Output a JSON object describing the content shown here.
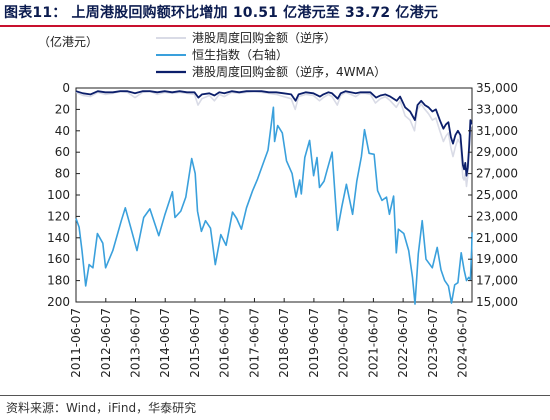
{
  "header": {
    "title": "图表11：  上周港股回购额环比增加 10.51 亿港元至 33.72 亿港元"
  },
  "footer": {
    "source": "资料来源：Wind，iFind，华泰研究"
  },
  "colors": {
    "buyback_weekly": "#d9dbe6",
    "hsi": "#3aa0dc",
    "buyback_4wma": "#0c1f6b",
    "title": "#0b1b4f",
    "title_rule": "#c8102e"
  },
  "chart_data": {
    "type": "line",
    "left_axis_unit": "（亿港元）",
    "left_axis": {
      "min": 0,
      "max": 200,
      "reversed": true,
      "ticks": [
        0,
        20,
        40,
        60,
        80,
        100,
        120,
        140,
        160,
        180,
        200
      ]
    },
    "right_axis": {
      "min": 15000,
      "max": 35000,
      "ticks": [
        15000,
        17000,
        19000,
        21000,
        23000,
        25000,
        27000,
        29000,
        31000,
        33000,
        35000
      ]
    },
    "x_tick_labels": [
      "2011-06-07",
      "2012-06-07",
      "2013-06-07",
      "2014-06-07",
      "2015-06-07",
      "2016-06-07",
      "2017-06-07",
      "2018-06-07",
      "2019-06-07",
      "2020-06-07",
      "2021-06-07",
      "2022-06-07",
      "2023-06-07",
      "2024-06-07"
    ],
    "x_range": [
      "2011-06-07",
      "2024-09-30"
    ],
    "grid": false,
    "legend_position": "top-center",
    "series": [
      {
        "name": "港股周度回购金额（逆序）",
        "axis": "left",
        "color": "#d9dbe6",
        "x": [
          "2011-06-07",
          "2011-09-01",
          "2011-12-01",
          "2012-03-01",
          "2012-06-01",
          "2012-09-01",
          "2012-12-01",
          "2013-03-01",
          "2013-06-01",
          "2013-09-01",
          "2013-12-01",
          "2014-03-01",
          "2014-06-01",
          "2014-09-01",
          "2014-12-01",
          "2015-03-01",
          "2015-06-01",
          "2015-07-15",
          "2015-09-01",
          "2015-12-01",
          "2016-02-01",
          "2016-04-01",
          "2016-06-01",
          "2016-09-01",
          "2016-12-01",
          "2017-03-01",
          "2017-06-01",
          "2017-09-01",
          "2017-12-01",
          "2018-03-01",
          "2018-06-01",
          "2018-09-01",
          "2018-10-20",
          "2018-12-01",
          "2019-03-01",
          "2019-06-01",
          "2019-08-15",
          "2019-10-01",
          "2019-12-01",
          "2020-01-15",
          "2020-03-20",
          "2020-05-01",
          "2020-07-01",
          "2020-09-01",
          "2020-11-01",
          "2021-01-01",
          "2021-03-01",
          "2021-05-01",
          "2021-07-01",
          "2021-09-01",
          "2021-11-01",
          "2022-01-01",
          "2022-03-15",
          "2022-05-01",
          "2022-07-01",
          "2022-09-01",
          "2022-10-25",
          "2022-12-01",
          "2023-01-15",
          "2023-03-01",
          "2023-04-15",
          "2023-06-01",
          "2023-07-15",
          "2023-09-01",
          "2023-10-15",
          "2023-11-15",
          "2023-12-15",
          "2024-01-15",
          "2024-02-10",
          "2024-03-10",
          "2024-04-10",
          "2024-05-10",
          "2024-06-10",
          "2024-06-25",
          "2024-07-10",
          "2024-07-25",
          "2024-08-10",
          "2024-08-25",
          "2024-09-10",
          "2024-09-25"
        ],
        "values": [
          4,
          7,
          8,
          4,
          6,
          5,
          3,
          4,
          9,
          4,
          3,
          6,
          4,
          5,
          4,
          5,
          6,
          16,
          10,
          7,
          12,
          6,
          8,
          4,
          5,
          4,
          3,
          4,
          5,
          6,
          8,
          10,
          20,
          8,
          6,
          7,
          12,
          9,
          6,
          8,
          16,
          7,
          4,
          6,
          8,
          5,
          5,
          6,
          14,
          10,
          8,
          12,
          18,
          12,
          26,
          30,
          40,
          20,
          15,
          20,
          24,
          30,
          28,
          40,
          50,
          45,
          42,
          56,
          64,
          55,
          48,
          52,
          84,
          86,
          80,
          92,
          82,
          62,
          38,
          34
        ]
      },
      {
        "name": "恒生指数（右轴）",
        "axis": "right",
        "color": "#3aa0dc",
        "x": [
          "2011-06-07",
          "2011-07-15",
          "2011-08-20",
          "2011-10-04",
          "2011-11-15",
          "2012-01-01",
          "2012-02-25",
          "2012-05-01",
          "2012-06-05",
          "2012-09-01",
          "2012-12-15",
          "2013-02-01",
          "2013-04-15",
          "2013-06-25",
          "2013-09-15",
          "2013-12-01",
          "2014-03-20",
          "2014-06-01",
          "2014-09-03",
          "2014-10-05",
          "2014-12-15",
          "2015-02-15",
          "2015-04-28",
          "2015-06-10",
          "2015-07-08",
          "2015-08-25",
          "2015-10-15",
          "2015-12-15",
          "2016-02-12",
          "2016-04-20",
          "2016-06-24",
          "2016-09-10",
          "2016-11-01",
          "2016-12-28",
          "2017-03-01",
          "2017-05-15",
          "2017-07-15",
          "2017-09-15",
          "2017-11-20",
          "2018-01-26",
          "2018-02-09",
          "2018-03-20",
          "2018-05-15",
          "2018-07-05",
          "2018-09-12",
          "2018-10-30",
          "2018-12-15",
          "2019-01-03",
          "2019-02-15",
          "2019-04-15",
          "2019-06-03",
          "2019-07-15",
          "2019-08-15",
          "2019-10-10",
          "2019-11-15",
          "2020-01-17",
          "2020-03-23",
          "2020-05-15",
          "2020-07-10",
          "2020-09-25",
          "2020-11-15",
          "2021-01-10",
          "2021-02-17",
          "2021-04-15",
          "2021-06-15",
          "2021-07-28",
          "2021-09-20",
          "2021-11-15",
          "2021-12-20",
          "2022-02-10",
          "2022-03-15",
          "2022-04-10",
          "2022-06-15",
          "2022-08-15",
          "2022-09-30",
          "2022-10-31",
          "2022-12-10",
          "2023-01-27",
          "2023-03-15",
          "2023-05-31",
          "2023-07-31",
          "2023-09-15",
          "2023-10-31",
          "2023-12-15",
          "2024-01-22",
          "2024-03-01",
          "2024-04-10",
          "2024-05-20",
          "2024-06-25",
          "2024-07-25",
          "2024-08-20",
          "2024-09-10",
          "2024-09-26",
          "2024-09-30"
        ],
        "values": [
          22800,
          22000,
          19800,
          16500,
          18500,
          18200,
          21400,
          20500,
          18200,
          19800,
          22600,
          23800,
          21800,
          19800,
          22900,
          23700,
          21200,
          23100,
          25300,
          22900,
          23500,
          24800,
          28400,
          27000,
          23500,
          21600,
          22600,
          21900,
          18500,
          21300,
          20300,
          23400,
          22800,
          21800,
          23800,
          25400,
          26500,
          27800,
          29200,
          33200,
          30000,
          31500,
          30800,
          28200,
          27000,
          24800,
          26400,
          25100,
          28500,
          30100,
          26800,
          28500,
          25700,
          26300,
          27300,
          29000,
          21700,
          23900,
          26000,
          23200,
          26300,
          28600,
          31100,
          28900,
          28800,
          25400,
          24500,
          24800,
          23200,
          24900,
          19600,
          21800,
          21400,
          19800,
          17300,
          14800,
          19500,
          22600,
          19000,
          18200,
          20100,
          18000,
          17000,
          16500,
          14900,
          16600,
          16800,
          19600,
          18000,
          17000,
          17300,
          17100,
          20000,
          21500
        ]
      },
      {
        "name": "港股周度回购金额（逆序，4WMA）",
        "axis": "left",
        "color": "#0c1f6b",
        "x": [
          "2011-06-07",
          "2011-09-01",
          "2011-12-01",
          "2012-03-01",
          "2012-06-01",
          "2012-09-01",
          "2012-12-01",
          "2013-03-01",
          "2013-06-01",
          "2013-09-01",
          "2013-12-01",
          "2014-03-01",
          "2014-06-01",
          "2014-09-01",
          "2014-12-01",
          "2015-03-01",
          "2015-06-01",
          "2015-07-20",
          "2015-09-01",
          "2015-12-01",
          "2016-02-01",
          "2016-04-01",
          "2016-06-01",
          "2016-09-01",
          "2016-12-01",
          "2017-03-01",
          "2017-06-01",
          "2017-09-01",
          "2017-12-01",
          "2018-03-01",
          "2018-06-01",
          "2018-09-01",
          "2018-10-25",
          "2018-12-01",
          "2019-03-01",
          "2019-06-01",
          "2019-08-20",
          "2019-10-01",
          "2019-12-01",
          "2020-01-15",
          "2020-03-25",
          "2020-05-01",
          "2020-07-01",
          "2020-09-01",
          "2020-11-01",
          "2021-01-01",
          "2021-03-01",
          "2021-05-01",
          "2021-07-10",
          "2021-09-01",
          "2021-11-01",
          "2022-01-01",
          "2022-03-20",
          "2022-05-01",
          "2022-07-01",
          "2022-09-01",
          "2022-10-30",
          "2022-12-01",
          "2023-01-15",
          "2023-03-01",
          "2023-04-15",
          "2023-06-01",
          "2023-07-15",
          "2023-09-01",
          "2023-10-15",
          "2023-11-15",
          "2023-12-15",
          "2024-01-15",
          "2024-02-10",
          "2024-03-10",
          "2024-04-10",
          "2024-05-10",
          "2024-06-10",
          "2024-06-25",
          "2024-07-10",
          "2024-07-25",
          "2024-08-10",
          "2024-08-25",
          "2024-09-10",
          "2024-09-25"
        ],
        "values": [
          3,
          5,
          6,
          3,
          4,
          4,
          3,
          3,
          5,
          3,
          3,
          4,
          3,
          4,
          3,
          4,
          4,
          9,
          6,
          5,
          7,
          4,
          5,
          3,
          4,
          3,
          3,
          3,
          4,
          4,
          5,
          6,
          12,
          6,
          4,
          5,
          8,
          6,
          4,
          5,
          10,
          5,
          3,
          4,
          5,
          4,
          4,
          4,
          9,
          7,
          6,
          8,
          12,
          8,
          18,
          22,
          30,
          16,
          12,
          16,
          18,
          22,
          20,
          30,
          38,
          34,
          32,
          46,
          52,
          44,
          40,
          44,
          72,
          76,
          70,
          82,
          74,
          55,
          30,
          34
        ]
      }
    ]
  }
}
